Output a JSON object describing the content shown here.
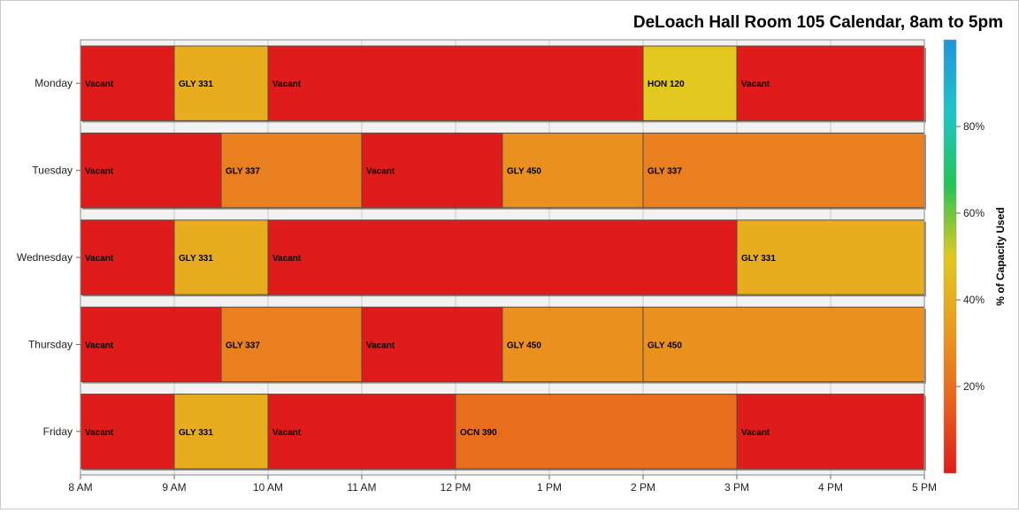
{
  "chart_data": {
    "type": "timeline",
    "title": "DeLoach Hall Room 105 Calendar, 8am to 5pm",
    "xlabel": "",
    "ylabel": "",
    "x_ticks": [
      "8 AM",
      "9 AM",
      "10 AM",
      "11 AM",
      "12 PM",
      "1 PM",
      "2 PM",
      "3 PM",
      "4 PM",
      "5 PM"
    ],
    "xlim": [
      8,
      17
    ],
    "categories": [
      "Monday",
      "Tuesday",
      "Wednesday",
      "Thursday",
      "Friday"
    ],
    "colorbar": {
      "label": "% of Capacity Used",
      "ticks": [
        "20%",
        "40%",
        "60%",
        "80%"
      ],
      "tick_values": [
        20,
        40,
        60,
        80
      ],
      "range": [
        0,
        100
      ],
      "colors": [
        "#e01b1b",
        "#e8631c",
        "#ea9b1f",
        "#e2c81e",
        "#22c557",
        "#1ec5c8",
        "#1e95dc"
      ]
    },
    "rows": [
      {
        "day": "Monday",
        "events": [
          {
            "label": "Vacant",
            "start": 8,
            "end": 9,
            "pct": 0
          },
          {
            "label": "GLY 331",
            "start": 9,
            "end": 10,
            "pct": 40
          },
          {
            "label": "Vacant",
            "start": 10,
            "end": 14,
            "pct": 0
          },
          {
            "label": "HON 120",
            "start": 14,
            "end": 15,
            "pct": 50
          },
          {
            "label": "Vacant",
            "start": 15,
            "end": 17,
            "pct": 0
          }
        ]
      },
      {
        "day": "Tuesday",
        "events": [
          {
            "label": "Vacant",
            "start": 8,
            "end": 9.5,
            "pct": 0
          },
          {
            "label": "GLY 337",
            "start": 9.5,
            "end": 11,
            "pct": 25
          },
          {
            "label": "Vacant",
            "start": 11,
            "end": 12.5,
            "pct": 0
          },
          {
            "label": "GLY 450",
            "start": 12.5,
            "end": 14,
            "pct": 30
          },
          {
            "label": "GLY 337",
            "start": 14,
            "end": 17,
            "pct": 25
          }
        ]
      },
      {
        "day": "Wednesday",
        "events": [
          {
            "label": "Vacant",
            "start": 8,
            "end": 9,
            "pct": 0
          },
          {
            "label": "GLY 331",
            "start": 9,
            "end": 10,
            "pct": 40
          },
          {
            "label": "Vacant",
            "start": 10,
            "end": 15,
            "pct": 0
          },
          {
            "label": "GLY 331",
            "start": 15,
            "end": 17,
            "pct": 40
          }
        ]
      },
      {
        "day": "Thursday",
        "events": [
          {
            "label": "Vacant",
            "start": 8,
            "end": 9.5,
            "pct": 0
          },
          {
            "label": "GLY 337",
            "start": 9.5,
            "end": 11,
            "pct": 25
          },
          {
            "label": "Vacant",
            "start": 11,
            "end": 12.5,
            "pct": 0
          },
          {
            "label": "GLY 450",
            "start": 12.5,
            "end": 14,
            "pct": 30
          },
          {
            "label": "GLY 450",
            "start": 14,
            "end": 17,
            "pct": 30
          }
        ]
      },
      {
        "day": "Friday",
        "events": [
          {
            "label": "Vacant",
            "start": 8,
            "end": 9,
            "pct": 0
          },
          {
            "label": "GLY 331",
            "start": 9,
            "end": 10,
            "pct": 40
          },
          {
            "label": "Vacant",
            "start": 10,
            "end": 12,
            "pct": 0
          },
          {
            "label": "OCN 390",
            "start": 12,
            "end": 15,
            "pct": 20
          },
          {
            "label": "Vacant",
            "start": 15,
            "end": 17,
            "pct": 0
          }
        ]
      }
    ]
  }
}
